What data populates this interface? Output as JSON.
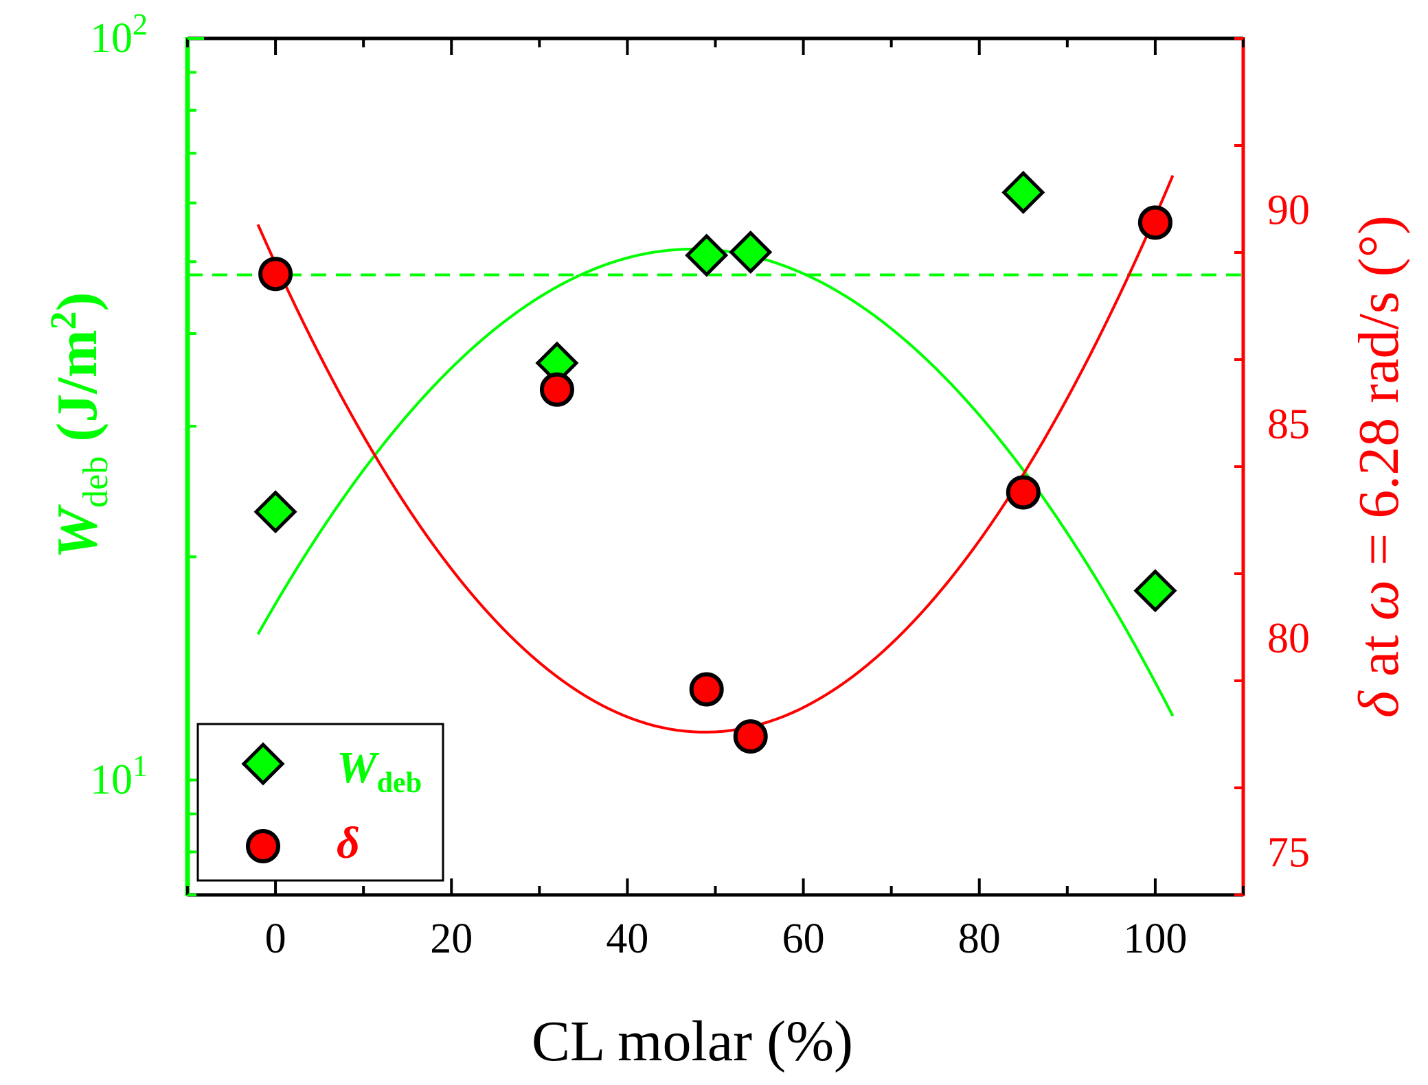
{
  "chart_data": {
    "type": "scatter",
    "title": "",
    "xlabel": "CL molar (%)",
    "xlim": [
      -10,
      110
    ],
    "xticks": [
      0,
      20,
      40,
      60,
      80,
      100
    ],
    "left_axis": {
      "label_main": "W",
      "label_sub": "deb",
      "label_unit_open": " (J/m",
      "label_unit_sup": "2",
      "label_unit_close": ")",
      "scale": "log",
      "ylim": [
        7,
        100
      ],
      "tick_base": "10",
      "tick_exps": [
        "1",
        "2"
      ],
      "color": "#00ff00"
    },
    "right_axis": {
      "label_main": "δ",
      "label_mid": " at ",
      "label_omega": "ω",
      "label_rest": " = 6.28 rad/s (",
      "label_degree": "°",
      "label_close": ")",
      "scale": "linear",
      "ylim": [
        74,
        94
      ],
      "ticks": [
        75,
        80,
        85,
        90
      ],
      "color": "#ff0000"
    },
    "series": [
      {
        "name": "W_deb",
        "legend_main": "W",
        "legend_sub": "deb",
        "axis": "left",
        "marker": "diamond",
        "color": "#00ff00",
        "x": [
          0,
          32,
          49,
          54,
          85,
          100
        ],
        "y": [
          23,
          36.5,
          51,
          51.5,
          62,
          18
        ]
      },
      {
        "name": "delta",
        "legend_main": "δ",
        "axis": "right",
        "marker": "circle",
        "color": "#ff0000",
        "x": [
          0,
          32,
          49,
          54,
          85,
          100
        ],
        "y": [
          88.5,
          85.8,
          78.8,
          77.7,
          83.4,
          89.7
        ]
      }
    ],
    "reference_line": {
      "axis": "left",
      "y": 48,
      "style": "dashed",
      "color": "#00ff00"
    },
    "fit_curves": [
      {
        "axis": "left",
        "type": "quadratic",
        "x_range": [
          -2,
          102
        ],
        "peak_x": 47.5,
        "peak_y": 52,
        "end_x": 102,
        "end_y": 12.2,
        "color": "#00ff00"
      },
      {
        "axis": "right",
        "type": "quadratic",
        "x_range": [
          -2,
          102
        ],
        "vertex_x": 48.8,
        "vertex_y": 77.8,
        "end_x": 102,
        "end_y": 90.8,
        "color": "#ff0000"
      }
    ],
    "legend_position": "bottom-left"
  }
}
